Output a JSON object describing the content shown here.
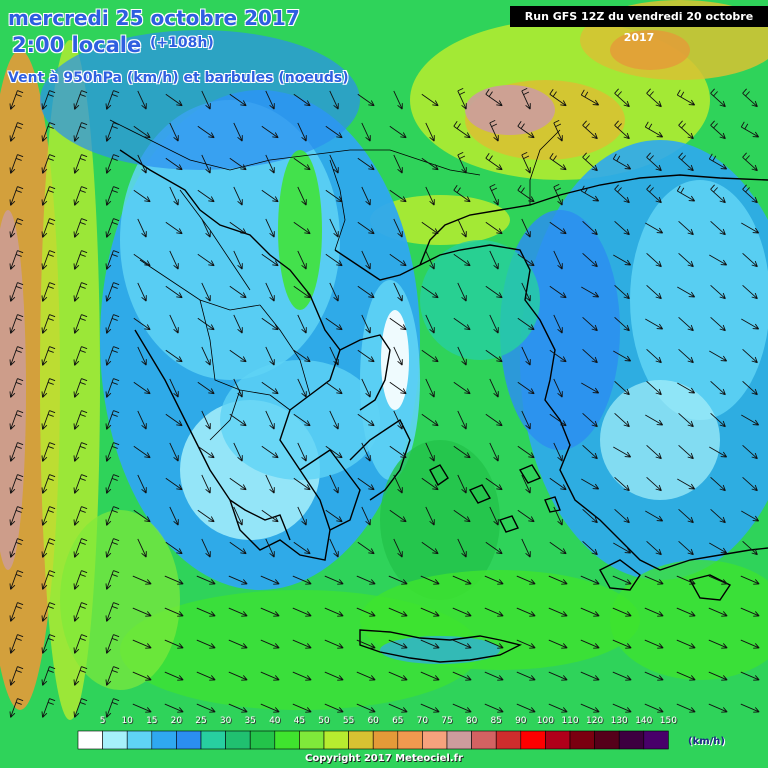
{
  "header": {
    "date": "mercredi 25 octobre 2017",
    "time": "2:00 locale",
    "lead": "(+108h)",
    "variable": "Vent à 950hPa (km/h) et barbules (noeuds)"
  },
  "run_info": "Run GFS 12Z du vendredi 20 octobre 2017",
  "legend": {
    "unit": "(km/h)",
    "thresholds": [
      "5",
      "10",
      "15",
      "20",
      "25",
      "30",
      "35",
      "40",
      "45",
      "50",
      "55",
      "60",
      "65",
      "70",
      "75",
      "80",
      "85",
      "90",
      "100",
      "110",
      "120",
      "130",
      "140",
      "150"
    ],
    "colors": [
      "#ffffff",
      "#a6f0fa",
      "#5fd3f5",
      "#2fa8f0",
      "#2b8ef0",
      "#27cfa0",
      "#20c070",
      "#23c34a",
      "#3fe42e",
      "#7fe93a",
      "#b7ec2f",
      "#d8c232",
      "#e59a38",
      "#f0994f",
      "#f6a27d",
      "#cc9c9d",
      "#d36262",
      "#ce2d2d",
      "#ff0000",
      "#b0001a",
      "#7a0010",
      "#55001a",
      "#3d0040",
      "#48006a"
    ]
  },
  "copyright": "Copyright 2017 Meteociel.fr",
  "map": {
    "region": "Balkans / Grèce / mer Égée",
    "field_colors": {
      "sea": "#2fd35a",
      "calm": "#2b8ef0",
      "very_calm": "#a6f0fa",
      "windy": "#e59a38"
    },
    "land_outline": "#000000"
  }
}
